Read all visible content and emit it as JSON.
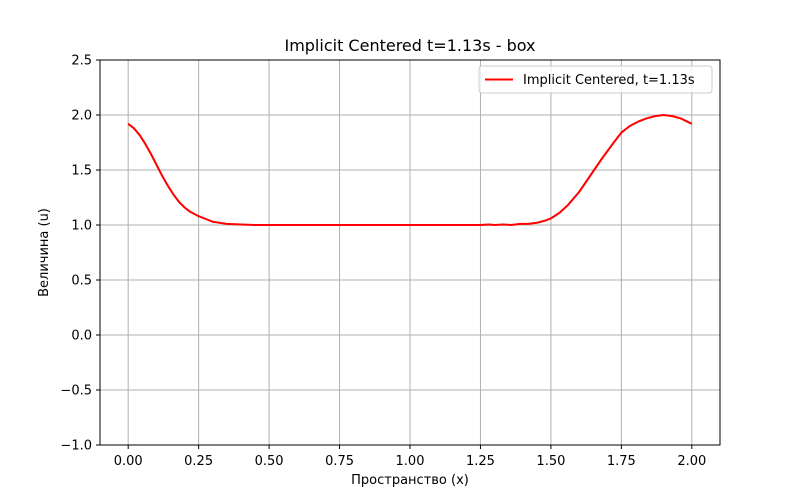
{
  "chart_data": {
    "type": "line",
    "title": "Implicit Centered t=1.13s - box",
    "xlabel": "Пространство (x)",
    "ylabel": "Величина (u)",
    "xlim": [
      -0.1,
      2.1
    ],
    "ylim": [
      -1.0,
      2.5
    ],
    "xticks": [
      "0.00",
      "0.25",
      "0.50",
      "0.75",
      "1.00",
      "1.25",
      "1.50",
      "1.75",
      "2.00"
    ],
    "yticks": [
      "−1.0",
      "−0.5",
      "0.0",
      "0.5",
      "1.0",
      "1.5",
      "2.0",
      "2.5"
    ],
    "grid": true,
    "legend_position": "top-right",
    "series": [
      {
        "name": "Implicit Centered, t=1.13s",
        "color": "#ff0000",
        "x": [
          0.0,
          0.02,
          0.04,
          0.06,
          0.08,
          0.1,
          0.12,
          0.14,
          0.16,
          0.18,
          0.2,
          0.22,
          0.25,
          0.28,
          0.3,
          0.35,
          0.4,
          0.45,
          0.5,
          0.6,
          0.7,
          0.8,
          0.9,
          1.0,
          1.1,
          1.15,
          1.2,
          1.25,
          1.28,
          1.3,
          1.33,
          1.36,
          1.39,
          1.42,
          1.45,
          1.48,
          1.5,
          1.53,
          1.56,
          1.6,
          1.64,
          1.68,
          1.72,
          1.75,
          1.78,
          1.81,
          1.84,
          1.87,
          1.9,
          1.93,
          1.96,
          2.0
        ],
        "y": [
          1.92,
          1.88,
          1.82,
          1.74,
          1.65,
          1.55,
          1.45,
          1.36,
          1.28,
          1.21,
          1.16,
          1.12,
          1.08,
          1.05,
          1.03,
          1.01,
          1.005,
          1.0,
          1.0,
          1.0,
          1.0,
          1.0,
          1.0,
          1.0,
          1.0,
          1.0,
          1.0,
          1.0,
          1.005,
          1.0,
          1.005,
          1.0,
          1.01,
          1.01,
          1.02,
          1.04,
          1.06,
          1.11,
          1.18,
          1.3,
          1.45,
          1.6,
          1.74,
          1.84,
          1.9,
          1.94,
          1.97,
          1.99,
          2.0,
          1.99,
          1.97,
          1.92
        ]
      }
    ]
  }
}
